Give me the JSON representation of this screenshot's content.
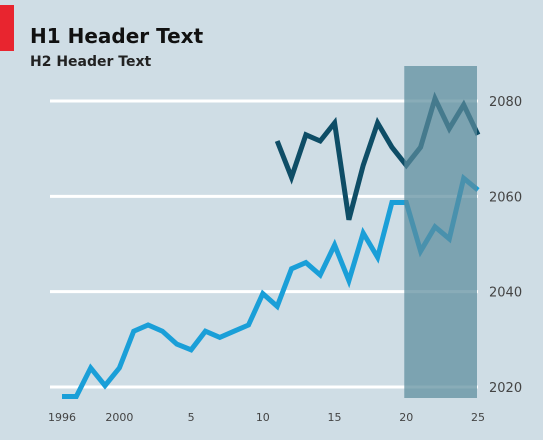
{
  "header": {
    "title": "H1 Header Text",
    "subtitle": "H2 Header Text"
  },
  "colors": {
    "background": "#cfdde5",
    "accent": "#e8252f",
    "gridline": "#ffffff",
    "highlight_band": "#5c8c9c",
    "series_light": "#1a9fd8",
    "series_dark": "#0e4d66"
  },
  "chart_data": {
    "type": "line",
    "title": "H1 Header Text",
    "subtitle": "H2 Header Text",
    "xlabel": "",
    "ylabel": "",
    "x": [
      1996,
      1997,
      1998,
      1999,
      2000,
      2001,
      2002,
      2003,
      2004,
      2005,
      2006,
      2007,
      2008,
      2009,
      2010,
      2011,
      2012,
      2013,
      2014,
      2015,
      2016,
      2017,
      2018,
      2019,
      2020,
      2021,
      2022,
      2023,
      2024,
      2025
    ],
    "x_ticks": [
      1996,
      2000,
      2005,
      2010,
      2015,
      2020,
      2025
    ],
    "x_tick_labels": [
      "1996",
      "2000",
      "5",
      "10",
      "15",
      "20",
      "25"
    ],
    "xlim": [
      1995,
      2026
    ],
    "ylim": [
      2018,
      2086
    ],
    "y_ticks": [
      2020,
      2040,
      2060,
      2080
    ],
    "y_tick_labels": [
      "2020",
      "2040",
      "2060",
      "2080"
    ],
    "y_axis_side": "right",
    "grid": true,
    "legend": "none",
    "highlight_range": [
      2020,
      2025
    ],
    "series": [
      {
        "color": "#1a9fd8",
        "values": [
          2018,
          2018,
          2024,
          2020.3,
          2024,
          2031.7,
          2033,
          2031.7,
          2029,
          2027.8,
          2031.7,
          2030.4,
          2031.7,
          2033,
          2039.6,
          2036.9,
          2044.8,
          2046.1,
          2043.5,
          2049.8,
          2042.3,
          2052.3,
          2047.2,
          2058.7,
          2058.7,
          2048.5,
          2053.6,
          2051.1,
          2063.8,
          2061.3
        ]
      },
      {
        "color": "#0e4d66",
        "values": [
          null,
          null,
          null,
          null,
          null,
          null,
          null,
          null,
          null,
          null,
          null,
          null,
          null,
          null,
          null,
          2071.6,
          2064,
          2072.9,
          2071.6,
          2075.4,
          2055.1,
          2066.5,
          2075.4,
          2070.3,
          2066.5,
          2070.3,
          2080.5,
          2074.2,
          2079.2,
          2072.9
        ]
      }
    ]
  }
}
